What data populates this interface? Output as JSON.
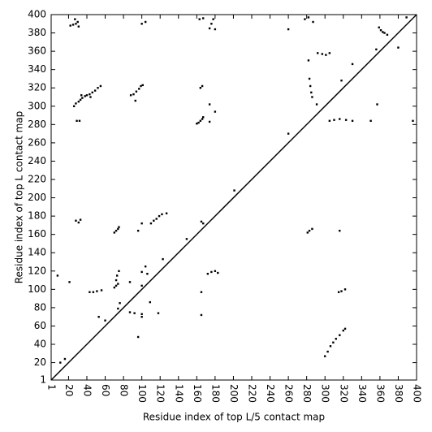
{
  "chart_data": {
    "type": "scatter",
    "xlabel": "Residue index of top L/5 contact map",
    "ylabel": "Residue index of top L contact map",
    "color": "#000000",
    "diagonal": true,
    "xlim": [
      1,
      400
    ],
    "ylim": [
      1,
      400
    ],
    "xticks": [
      1,
      20,
      40,
      60,
      80,
      100,
      120,
      140,
      160,
      180,
      200,
      220,
      240,
      260,
      280,
      300,
      320,
      340,
      360,
      380,
      400
    ],
    "yticks": [
      1,
      20,
      40,
      60,
      80,
      100,
      120,
      140,
      160,
      180,
      200,
      220,
      240,
      260,
      280,
      300,
      320,
      340,
      360,
      380,
      400
    ],
    "x": [
      22,
      25,
      28,
      30,
      27,
      31,
      26,
      28,
      31,
      33,
      35,
      38,
      40,
      43,
      46,
      49,
      52,
      55,
      34,
      44,
      29,
      32,
      88,
      91,
      94,
      97,
      99,
      101,
      93,
      100,
      104,
      163,
      167,
      164,
      166,
      160,
      162,
      164,
      166,
      167,
      174,
      174,
      176,
      178,
      180,
      174,
      180,
      260,
      278,
      282,
      287,
      282,
      283,
      284,
      285,
      286,
      291,
      292,
      297,
      301,
      305,
      318,
      330,
      356,
      359,
      361,
      363,
      365,
      368,
      380,
      389,
      11,
      16,
      8,
      21,
      123,
      149,
      201,
      260,
      28,
      31,
      33,
      70,
      72,
      74,
      75,
      96,
      110,
      113,
      116,
      119,
      122,
      127,
      100,
      70,
      72,
      74,
      72,
      73,
      75,
      74,
      76,
      43,
      47,
      51,
      56,
      100,
      106,
      104,
      87,
      100,
      165,
      167,
      172,
      176,
      180,
      183,
      87,
      92,
      100,
      118,
      109,
      96,
      100,
      165,
      165,
      60,
      53,
      281,
      283,
      286,
      316,
      305,
      310,
      316,
      323,
      330,
      350,
      357,
      396,
      300,
      303,
      306,
      309,
      312,
      316,
      320,
      322,
      315,
      318,
      322
    ],
    "values": [
      388,
      389,
      390,
      392,
      395,
      387,
      300,
      303,
      305,
      307,
      309,
      311,
      312,
      313,
      315,
      317,
      320,
      322,
      312,
      310,
      284,
      284,
      312,
      313,
      316,
      319,
      322,
      323,
      306,
      390,
      392,
      395,
      396,
      320,
      322,
      281,
      282,
      284,
      286,
      288,
      302,
      385,
      390,
      395,
      384,
      283,
      294,
      384,
      395,
      397,
      392,
      350,
      330,
      322,
      315,
      310,
      302,
      358,
      357,
      356,
      358,
      328,
      346,
      362,
      386,
      383,
      381,
      380,
      378,
      364,
      397,
      20,
      24,
      115,
      108,
      133,
      155,
      208,
      270,
      175,
      173,
      176,
      162,
      164,
      166,
      168,
      164,
      172,
      175,
      177,
      180,
      182,
      183,
      172,
      102,
      104,
      106,
      110,
      115,
      120,
      79,
      85,
      97,
      97,
      98,
      99,
      119,
      117,
      125,
      108,
      104,
      174,
      172,
      117,
      119,
      120,
      118,
      75,
      74,
      73,
      74,
      86,
      48,
      70,
      97,
      72,
      66,
      70,
      162,
      164,
      166,
      164,
      284,
      285,
      286,
      285,
      284,
      284,
      302,
      284,
      27,
      32,
      38,
      42,
      46,
      50,
      55,
      57,
      97,
      98,
      100
    ]
  }
}
